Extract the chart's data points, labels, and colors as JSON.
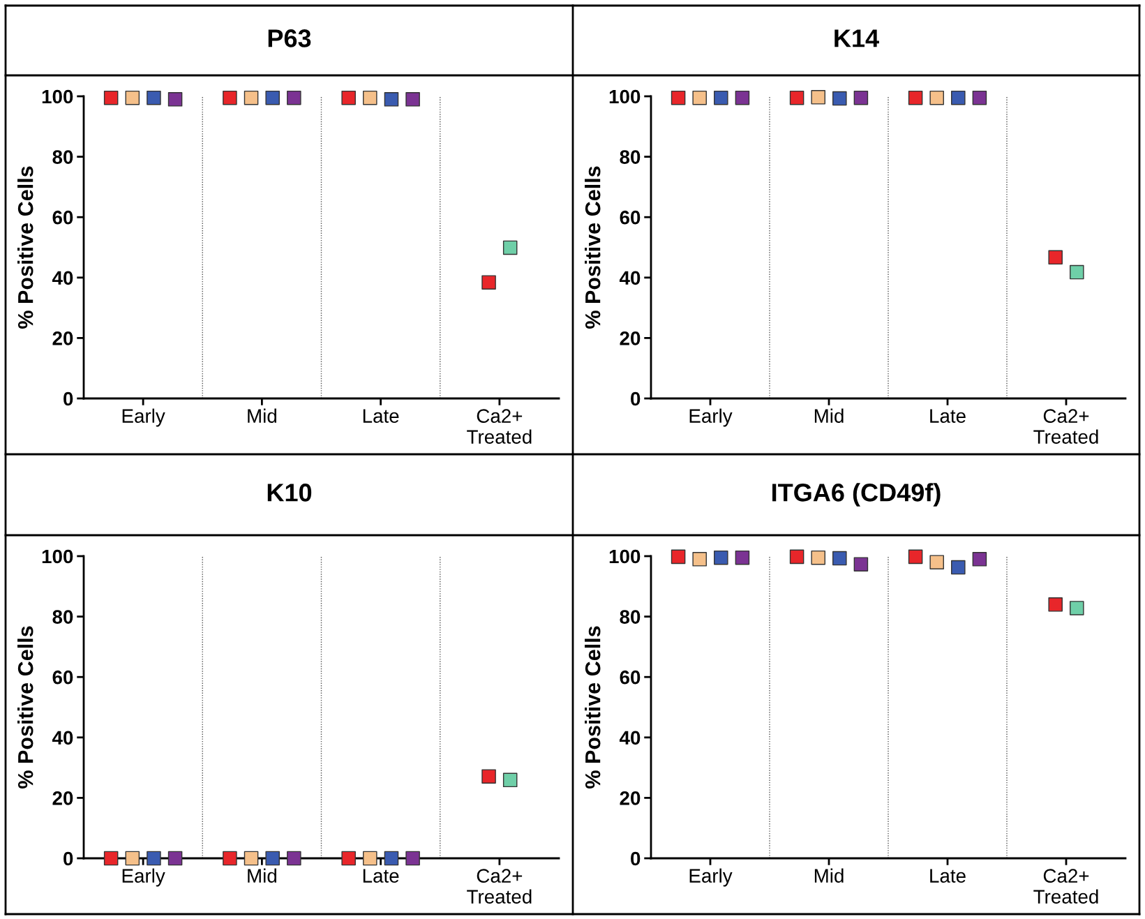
{
  "chart_data": [
    {
      "type": "scatter",
      "title": "P63",
      "ylabel": "% Positive Cells",
      "categories": [
        "Early",
        "Mid",
        "Late",
        "Ca2+\nTreated"
      ],
      "ylim": [
        0,
        100
      ],
      "yticks": [
        0,
        20,
        40,
        60,
        80,
        100
      ],
      "marker": "square",
      "grid": false,
      "legend": false,
      "series": [
        {
          "color": "#e8262a",
          "values": [
            99.5,
            99.5,
            99.5,
            38.4
          ]
        },
        {
          "color": "#f5c08a",
          "values": [
            99.5,
            99.5,
            99.5,
            null
          ]
        },
        {
          "color": "#3a5bb0",
          "values": [
            99.5,
            99.5,
            99,
            null
          ]
        },
        {
          "color": "#7b3393",
          "values": [
            99,
            99.5,
            99,
            null
          ]
        },
        {
          "color": "#6fcfa8",
          "values": [
            null,
            null,
            null,
            49.9
          ]
        }
      ]
    },
    {
      "type": "scatter",
      "title": "K14",
      "ylabel": "% Positive Cells",
      "categories": [
        "Early",
        "Mid",
        "Late",
        "Ca2+\nTreated"
      ],
      "ylim": [
        0,
        100
      ],
      "yticks": [
        0,
        20,
        40,
        60,
        80,
        100
      ],
      "marker": "square",
      "grid": false,
      "legend": false,
      "series": [
        {
          "color": "#e8262a",
          "values": [
            99.5,
            99.5,
            99.5,
            46.7
          ]
        },
        {
          "color": "#f5c08a",
          "values": [
            99.5,
            99.7,
            99.5,
            null
          ]
        },
        {
          "color": "#3a5bb0",
          "values": [
            99.5,
            99.3,
            99.5,
            null
          ]
        },
        {
          "color": "#7b3393",
          "values": [
            99.5,
            99.5,
            99.5,
            null
          ]
        },
        {
          "color": "#6fcfa8",
          "values": [
            null,
            null,
            null,
            41.8
          ]
        }
      ]
    },
    {
      "type": "scatter",
      "title": "K10",
      "ylabel": "% Positive Cells",
      "categories": [
        "Early",
        "Mid",
        "Late",
        "Ca2+\nTreated"
      ],
      "ylim": [
        0,
        100
      ],
      "yticks": [
        0,
        20,
        40,
        60,
        80,
        100
      ],
      "marker": "square",
      "grid": false,
      "legend": false,
      "series": [
        {
          "color": "#e8262a",
          "values": [
            0,
            0,
            0,
            27.1
          ]
        },
        {
          "color": "#f5c08a",
          "values": [
            0,
            0,
            0,
            null
          ]
        },
        {
          "color": "#3a5bb0",
          "values": [
            0,
            0,
            0,
            null
          ]
        },
        {
          "color": "#7b3393",
          "values": [
            0,
            0,
            0,
            null
          ]
        },
        {
          "color": "#6fcfa8",
          "values": [
            null,
            null,
            null,
            25.9
          ]
        }
      ]
    },
    {
      "type": "scatter",
      "title": "ITGA6 (CD49f)",
      "ylabel": "% Positive Cells",
      "categories": [
        "Early",
        "Mid",
        "Late",
        "Ca2+\nTreated"
      ],
      "ylim": [
        0,
        100
      ],
      "yticks": [
        0,
        20,
        40,
        60,
        80,
        100
      ],
      "marker": "square",
      "grid": false,
      "legend": false,
      "series": [
        {
          "color": "#e8262a",
          "values": [
            99.8,
            99.8,
            99.8,
            84
          ]
        },
        {
          "color": "#f5c08a",
          "values": [
            99,
            99.5,
            98,
            null
          ]
        },
        {
          "color": "#3a5bb0",
          "values": [
            99.5,
            99.3,
            96.3,
            null
          ]
        },
        {
          "color": "#7b3393",
          "values": [
            99.5,
            97.3,
            99,
            null
          ]
        },
        {
          "color": "#6fcfa8",
          "values": [
            null,
            null,
            null,
            82.8
          ]
        }
      ]
    }
  ]
}
